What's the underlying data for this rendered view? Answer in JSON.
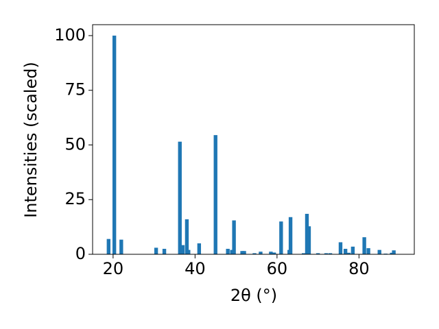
{
  "chart_data": {
    "type": "bar",
    "xlabel": "2θ (°)",
    "ylabel": "Intensities (scaled)",
    "x": [
      18.9,
      20.3,
      22.0,
      30.5,
      32.5,
      36.3,
      37.0,
      38.0,
      38.4,
      41.0,
      45.0,
      48.0,
      49.0,
      49.5,
      51.5,
      52.0,
      54.5,
      56.0,
      58.5,
      59.3,
      61.0,
      63.0,
      63.3,
      66.5,
      67.3,
      67.8,
      70.0,
      72.0,
      73.0,
      75.5,
      76.7,
      77.5,
      78.5,
      81.3,
      82.3,
      85.0,
      86.5,
      88.0,
      88.5
    ],
    "values": [
      7,
      100,
      6.7,
      3,
      2.5,
      51.5,
      4.2,
      16,
      2,
      5,
      54.5,
      2.5,
      2,
      15.5,
      1.5,
      1.5,
      0.5,
      1.2,
      1.2,
      0.8,
      15,
      2,
      17,
      0.5,
      18.5,
      12.8,
      0.5,
      0.5,
      0.5,
      5.5,
      2.5,
      0.7,
      3.5,
      7.8,
      2.8,
      2,
      0.3,
      0.7,
      1.8
    ],
    "color": "#1f77b4",
    "xlim": [
      15,
      93.5
    ],
    "xticks": [
      20,
      40,
      60,
      80
    ],
    "ylim": [
      0,
      105
    ],
    "yticks": [
      0,
      25,
      50,
      75,
      100
    ]
  }
}
